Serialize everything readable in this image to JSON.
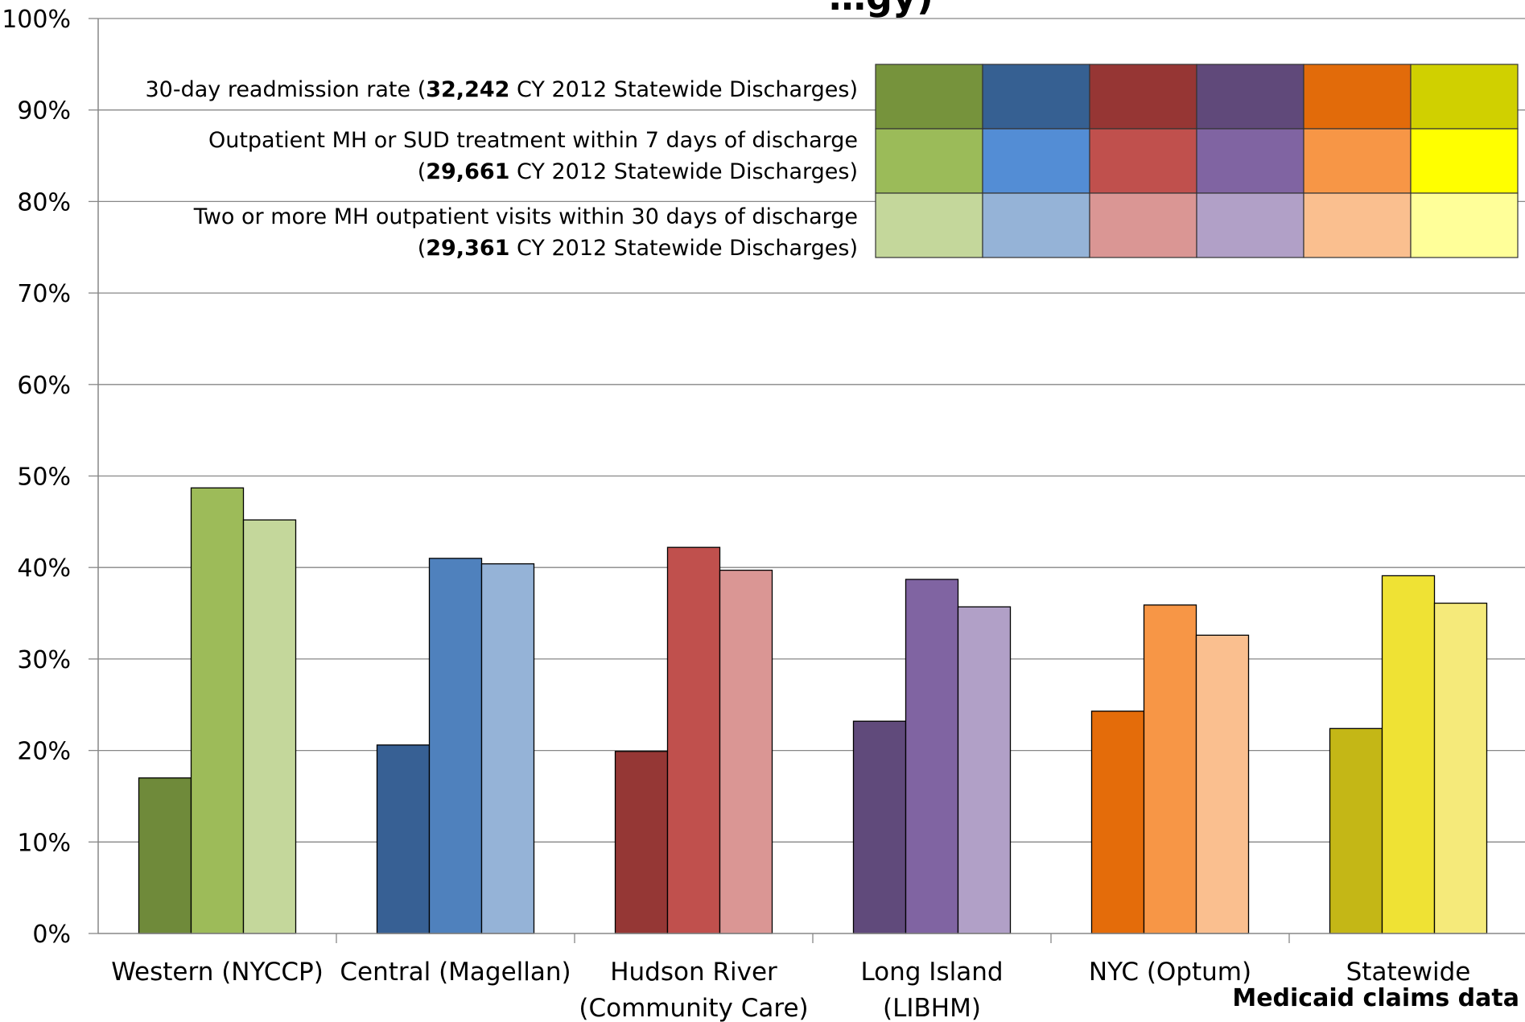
{
  "chart_data": {
    "type": "bar",
    "title": "…gy)",
    "ylim": [
      0,
      100
    ],
    "yticks": [
      "0%",
      "10%",
      "20%",
      "30%",
      "40%",
      "50%",
      "60%",
      "70%",
      "80%",
      "90%",
      "100%"
    ],
    "categories": [
      [
        "Western (NYCCP)"
      ],
      [
        "Central (Magellan)"
      ],
      [
        "Hudson River",
        "(Community Care)"
      ],
      [
        "Long Island",
        "(LIBHM)"
      ],
      [
        "NYC (Optum)"
      ],
      [
        "Statewide"
      ]
    ],
    "series": [
      {
        "name": "30-day readmission rate",
        "name_parts": [
          "30-day readmission rate (",
          "32,242",
          " CY 2012 Statewide Discharges)"
        ],
        "values": [
          17.0,
          20.6,
          19.9,
          23.2,
          24.3,
          22.4
        ]
      },
      {
        "name": "Outpatient MH or SUD treatment within 7 days of discharge",
        "name_parts": [
          "Outpatient MH or SUD treatment within 7 days of discharge",
          "(",
          "29,661",
          " CY 2012 Statewide Discharges)"
        ],
        "values": [
          48.7,
          41.0,
          42.2,
          38.7,
          35.9,
          39.1
        ]
      },
      {
        "name": "Two or more MH outpatient visits within 30 days of discharge",
        "name_parts": [
          "Two or more MH outpatient visits within 30 days of discharge",
          "(",
          "29,361",
          " CY 2012 Statewide Discharges)"
        ],
        "values": [
          45.2,
          40.4,
          39.7,
          35.7,
          32.6,
          36.1
        ]
      }
    ],
    "colors": [
      [
        "#6f8a3a",
        "#9dbb59",
        "#c4d79b"
      ],
      [
        "#376094",
        "#4f81bd",
        "#95b3d7"
      ],
      [
        "#953735",
        "#c0504d",
        "#da9694"
      ],
      [
        "#604a7b",
        "#8064a2",
        "#b1a0c7"
      ],
      [
        "#e46c0a",
        "#f79646",
        "#fabf8f"
      ],
      [
        "#c4b716",
        "#efe234",
        "#f5ea7a"
      ]
    ],
    "legend_colors": [
      [
        "#76933c",
        "#366092",
        "#963634",
        "#60497a",
        "#e26b0a",
        "#d0d000"
      ],
      [
        "#9bbb59",
        "#538dd5",
        "#c0504d",
        "#8064a2",
        "#f79646",
        "#ffff00"
      ],
      [
        "#c4d79b",
        "#95b3d7",
        "#da9694",
        "#b1a0c7",
        "#fabf8f",
        "#ffff99"
      ]
    ],
    "grid": true,
    "legend_position": "top-right",
    "note": "Medicaid claims data"
  }
}
